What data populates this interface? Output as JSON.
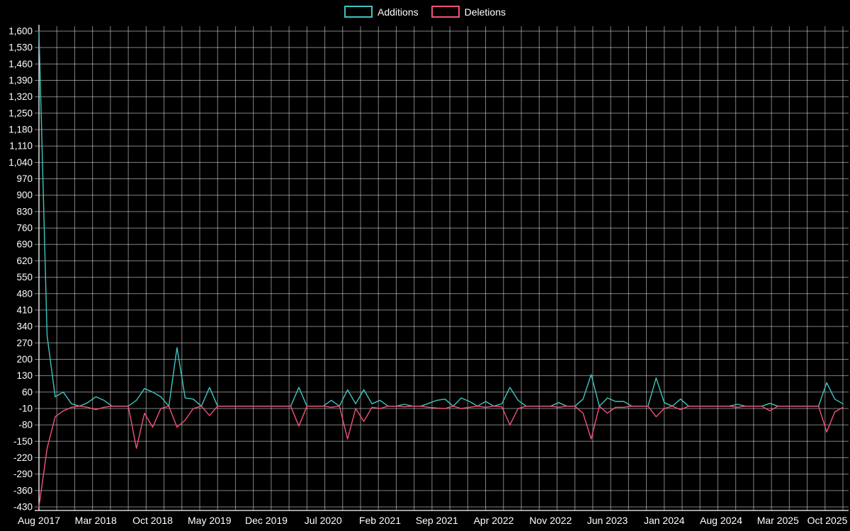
{
  "page": {
    "background": "#000000",
    "text_color": "#ffffff"
  },
  "chart_data": {
    "type": "line",
    "title": "",
    "legend_position": "top-center",
    "x_axis": {
      "unit": "month",
      "start": "Aug 2017",
      "end": "Oct 2025",
      "tick_labels": [
        "Aug 2017",
        "Mar 2018",
        "Oct 2018",
        "May 2019",
        "Dec 2019",
        "Jul 2020",
        "Feb 2021",
        "Sep 2021",
        "Apr 2022",
        "Nov 2022",
        "Jun 2023",
        "Jan 2024",
        "Aug 2024",
        "Mar 2025",
        "Oct 2025"
      ],
      "tick_month_positions": [
        0,
        7,
        14,
        21,
        28,
        35,
        42,
        49,
        56,
        63,
        70,
        77,
        84,
        91,
        98
      ]
    },
    "y_axis": {
      "min": -430,
      "max": 1600,
      "tick_step": 70,
      "tick_labels": [
        "1,600",
        "1,530",
        "1,460",
        "1,390",
        "1,320",
        "1,250",
        "1,180",
        "1,110",
        "1,040",
        "970",
        "900",
        "830",
        "760",
        "690",
        "620",
        "550",
        "480",
        "410",
        "340",
        "270",
        "200",
        "130",
        "60",
        "-10",
        "-80",
        "-150",
        "-220",
        "-290",
        "-360",
        "-430"
      ]
    },
    "grid": {
      "show": true,
      "color": "#ffffff",
      "opacity": 0.5,
      "vertical_line_count": 46
    },
    "series": [
      {
        "name": "Additions",
        "color": "#3fc5bf",
        "plotted_as": "positive",
        "values": [
          1600,
          300,
          40,
          60,
          10,
          0,
          15,
          40,
          25,
          0,
          0,
          0,
          25,
          75,
          60,
          40,
          0,
          250,
          35,
          30,
          0,
          80,
          0,
          0,
          0,
          0,
          0,
          0,
          0,
          0,
          0,
          0,
          80,
          0,
          0,
          0,
          25,
          0,
          70,
          10,
          70,
          10,
          25,
          0,
          0,
          8,
          0,
          0,
          12,
          25,
          30,
          0,
          35,
          20,
          0,
          20,
          0,
          10,
          80,
          25,
          0,
          0,
          0,
          0,
          15,
          0,
          0,
          30,
          135,
          0,
          35,
          20,
          20,
          0,
          0,
          0,
          120,
          15,
          0,
          30,
          0,
          0,
          0,
          0,
          0,
          0,
          8,
          0,
          0,
          0,
          12,
          0,
          0,
          0,
          0,
          0,
          0,
          100,
          30,
          10
        ]
      },
      {
        "name": "Deletions",
        "color": "#f4537a",
        "plotted_as": "negative",
        "values": [
          430,
          180,
          45,
          20,
          5,
          0,
          5,
          15,
          5,
          0,
          0,
          0,
          180,
          30,
          90,
          10,
          0,
          90,
          60,
          10,
          0,
          40,
          0,
          0,
          0,
          0,
          0,
          0,
          0,
          0,
          0,
          0,
          85,
          0,
          0,
          0,
          5,
          0,
          140,
          10,
          65,
          5,
          10,
          0,
          0,
          3,
          0,
          0,
          5,
          8,
          10,
          0,
          10,
          5,
          0,
          5,
          0,
          3,
          80,
          10,
          0,
          0,
          0,
          0,
          5,
          0,
          0,
          30,
          140,
          0,
          30,
          5,
          5,
          0,
          0,
          0,
          45,
          10,
          0,
          15,
          0,
          0,
          0,
          0,
          0,
          0,
          5,
          0,
          0,
          0,
          20,
          0,
          0,
          0,
          0,
          0,
          0,
          110,
          25,
          5
        ]
      }
    ]
  }
}
